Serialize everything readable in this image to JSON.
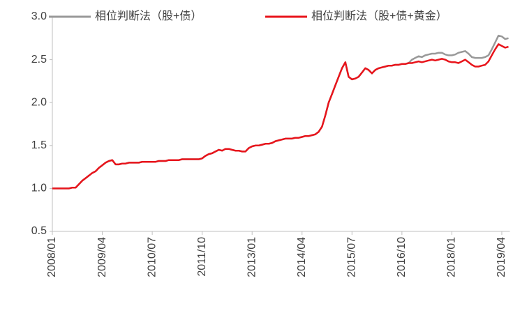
{
  "chart_data": {
    "type": "line",
    "x": [
      "2008/01",
      "2008/02",
      "2008/03",
      "2008/04",
      "2008/05",
      "2008/06",
      "2008/07",
      "2008/08",
      "2008/09",
      "2008/10",
      "2008/11",
      "2008/12",
      "2009/01",
      "2009/02",
      "2009/03",
      "2009/04",
      "2009/05",
      "2009/06",
      "2009/07",
      "2009/08",
      "2009/09",
      "2009/10",
      "2009/11",
      "2009/12",
      "2010/01",
      "2010/02",
      "2010/03",
      "2010/04",
      "2010/05",
      "2010/06",
      "2010/07",
      "2010/08",
      "2010/09",
      "2010/10",
      "2010/11",
      "2010/12",
      "2011/01",
      "2011/02",
      "2011/03",
      "2011/04",
      "2011/05",
      "2011/06",
      "2011/07",
      "2011/08",
      "2011/09",
      "2011/10",
      "2011/11",
      "2011/12",
      "2012/01",
      "2012/02",
      "2012/03",
      "2012/04",
      "2012/05",
      "2012/06",
      "2012/07",
      "2012/08",
      "2012/09",
      "2012/10",
      "2012/11",
      "2012/12",
      "2013/01",
      "2013/02",
      "2013/03",
      "2013/04",
      "2013/05",
      "2013/06",
      "2013/07",
      "2013/08",
      "2013/09",
      "2013/10",
      "2013/11",
      "2013/12",
      "2014/01",
      "2014/02",
      "2014/03",
      "2014/04",
      "2014/05",
      "2014/06",
      "2014/07",
      "2014/08",
      "2014/09",
      "2014/10",
      "2014/11",
      "2014/12",
      "2015/01",
      "2015/02",
      "2015/03",
      "2015/04",
      "2015/05",
      "2015/06",
      "2015/07",
      "2015/08",
      "2015/09",
      "2015/10",
      "2015/11",
      "2015/12",
      "2016/01",
      "2016/02",
      "2016/03",
      "2016/04",
      "2016/05",
      "2016/06",
      "2016/07",
      "2016/08",
      "2016/09",
      "2016/10",
      "2016/11",
      "2016/12",
      "2017/01",
      "2017/02",
      "2017/03",
      "2017/04",
      "2017/05",
      "2017/06",
      "2017/07",
      "2017/08",
      "2017/09",
      "2017/10",
      "2017/11",
      "2017/12",
      "2018/01",
      "2018/02",
      "2018/03",
      "2018/04",
      "2018/05",
      "2018/06",
      "2018/07",
      "2018/08",
      "2018/09",
      "2018/10",
      "2018/11",
      "2018/12",
      "2019/01",
      "2019/02",
      "2019/03",
      "2019/04",
      "2019/05",
      "2019/06"
    ],
    "series": [
      {
        "name": "相位判断法（股+债）",
        "color": "#999999",
        "values": [
          1.0,
          1.0,
          1.0,
          1.0,
          1.0,
          1.0,
          1.01,
          1.01,
          1.05,
          1.09,
          1.12,
          1.15,
          1.18,
          1.2,
          1.24,
          1.27,
          1.3,
          1.32,
          1.33,
          1.28,
          1.28,
          1.29,
          1.29,
          1.3,
          1.3,
          1.3,
          1.3,
          1.31,
          1.31,
          1.31,
          1.31,
          1.31,
          1.32,
          1.32,
          1.32,
          1.33,
          1.33,
          1.33,
          1.33,
          1.34,
          1.34,
          1.34,
          1.34,
          1.34,
          1.34,
          1.35,
          1.38,
          1.4,
          1.41,
          1.43,
          1.45,
          1.44,
          1.46,
          1.46,
          1.45,
          1.44,
          1.44,
          1.43,
          1.43,
          1.47,
          1.49,
          1.5,
          1.5,
          1.51,
          1.52,
          1.52,
          1.53,
          1.55,
          1.56,
          1.57,
          1.58,
          1.58,
          1.58,
          1.59,
          1.59,
          1.6,
          1.61,
          1.61,
          1.62,
          1.63,
          1.66,
          1.72,
          1.85,
          2.0,
          2.1,
          2.2,
          2.3,
          2.4,
          2.47,
          2.3,
          2.27,
          2.28,
          2.3,
          2.35,
          2.4,
          2.38,
          2.34,
          2.38,
          2.4,
          2.41,
          2.42,
          2.43,
          2.43,
          2.44,
          2.44,
          2.45,
          2.45,
          2.46,
          2.5,
          2.52,
          2.54,
          2.53,
          2.55,
          2.56,
          2.57,
          2.57,
          2.58,
          2.58,
          2.56,
          2.55,
          2.55,
          2.56,
          2.58,
          2.59,
          2.6,
          2.57,
          2.53,
          2.52,
          2.52,
          2.52,
          2.53,
          2.55,
          2.62,
          2.7,
          2.78,
          2.77,
          2.74,
          2.75
        ]
      },
      {
        "name": "相位判断法（股+债+黄金）",
        "color": "#e8141b",
        "values": [
          1.0,
          1.0,
          1.0,
          1.0,
          1.0,
          1.0,
          1.01,
          1.01,
          1.05,
          1.09,
          1.12,
          1.15,
          1.18,
          1.2,
          1.24,
          1.27,
          1.3,
          1.32,
          1.33,
          1.28,
          1.28,
          1.29,
          1.29,
          1.3,
          1.3,
          1.3,
          1.3,
          1.31,
          1.31,
          1.31,
          1.31,
          1.31,
          1.32,
          1.32,
          1.32,
          1.33,
          1.33,
          1.33,
          1.33,
          1.34,
          1.34,
          1.34,
          1.34,
          1.34,
          1.34,
          1.35,
          1.38,
          1.4,
          1.41,
          1.43,
          1.45,
          1.44,
          1.46,
          1.46,
          1.45,
          1.44,
          1.44,
          1.43,
          1.43,
          1.47,
          1.49,
          1.5,
          1.5,
          1.51,
          1.52,
          1.52,
          1.53,
          1.55,
          1.56,
          1.57,
          1.58,
          1.58,
          1.58,
          1.59,
          1.59,
          1.6,
          1.61,
          1.61,
          1.62,
          1.63,
          1.66,
          1.72,
          1.85,
          2.0,
          2.1,
          2.2,
          2.3,
          2.4,
          2.47,
          2.3,
          2.27,
          2.28,
          2.3,
          2.35,
          2.4,
          2.38,
          2.34,
          2.38,
          2.4,
          2.41,
          2.42,
          2.43,
          2.43,
          2.44,
          2.44,
          2.45,
          2.45,
          2.46,
          2.46,
          2.47,
          2.48,
          2.47,
          2.48,
          2.49,
          2.5,
          2.49,
          2.5,
          2.51,
          2.5,
          2.48,
          2.47,
          2.47,
          2.46,
          2.48,
          2.5,
          2.47,
          2.44,
          2.42,
          2.42,
          2.43,
          2.44,
          2.48,
          2.55,
          2.62,
          2.68,
          2.66,
          2.64,
          2.65
        ]
      }
    ],
    "xticks": [
      "2008/01",
      "2009/04",
      "2010/07",
      "2011/10",
      "2013/01",
      "2014/04",
      "2015/07",
      "2016/10",
      "2018/01",
      "2019/04"
    ],
    "ylim": [
      0.5,
      3.0
    ],
    "yticks": [
      0.5,
      {
        "value": 1.0,
        "label": "1.0"
      },
      1.5,
      {
        "value": 2.0,
        "label": "2.0"
      },
      2.5,
      {
        "value": 3.0,
        "label": "3.0"
      }
    ],
    "grid": false
  }
}
